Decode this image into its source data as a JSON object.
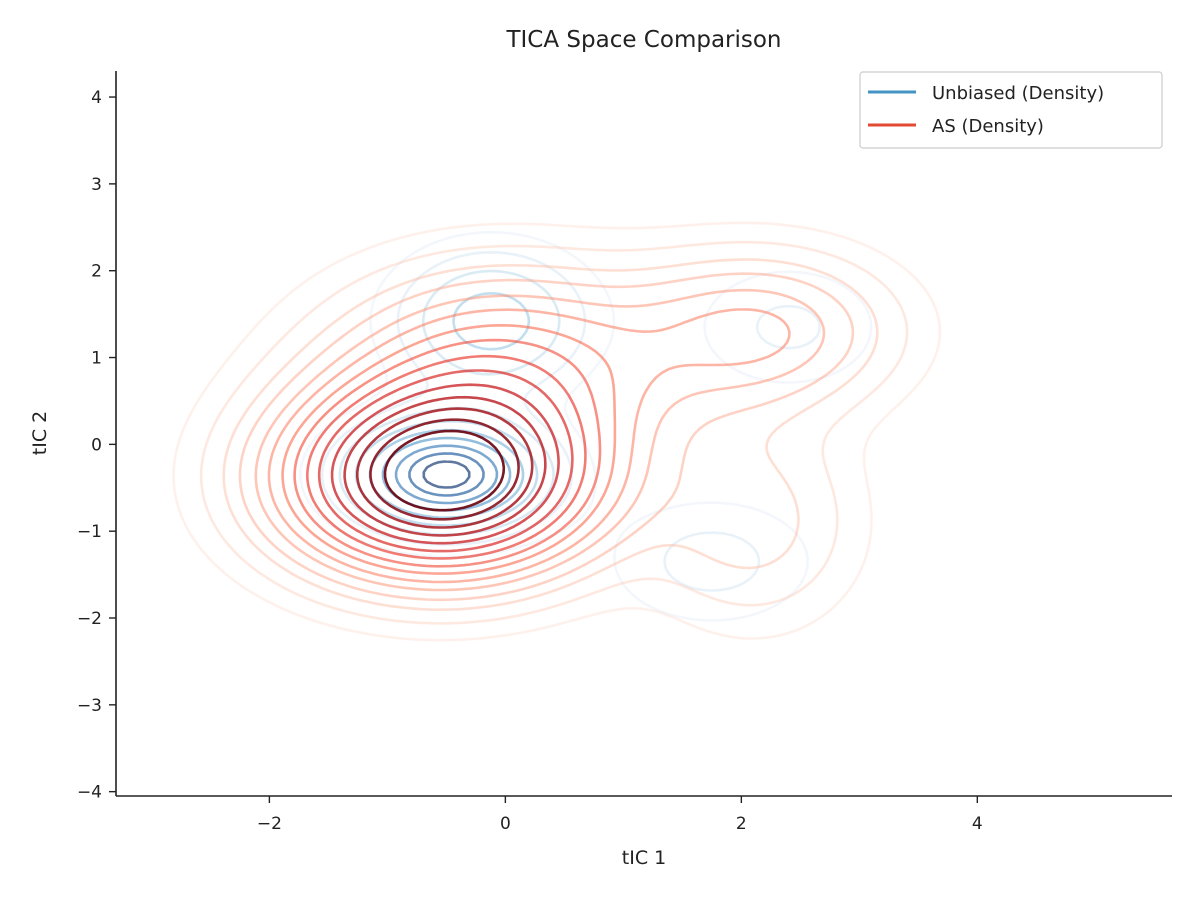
{
  "chart_data": {
    "type": "contour",
    "title": "TICA Space Comparison",
    "xlabel": "tIC 1",
    "ylabel": "tIC 2",
    "xlim": [
      -3.3,
      5.65
    ],
    "ylim": [
      -4.05,
      4.3
    ],
    "xticks": [
      -2,
      0,
      2,
      4
    ],
    "yticks": [
      -4,
      -3,
      -2,
      -1,
      0,
      1,
      2,
      3,
      4
    ],
    "xtick_labels": [
      "−2",
      "0",
      "2",
      "4"
    ],
    "ytick_labels": [
      "−4",
      "−3",
      "−2",
      "−1",
      "0",
      "1",
      "2",
      "3",
      "4"
    ],
    "grid": false,
    "legend_position": "top-right",
    "series": [
      {
        "name": "Unbiased (Density)",
        "color": "#4393c3",
        "colormap": "Blues",
        "components": [
          {
            "cx": -0.5,
            "cy": -0.35,
            "sx": 0.55,
            "sy": 0.42,
            "w": 1.0
          },
          {
            "cx": -0.12,
            "cy": 1.42,
            "sx": 0.55,
            "sy": 0.55,
            "w": 0.45
          },
          {
            "cx": 2.4,
            "cy": 1.35,
            "sx": 0.55,
            "sy": 0.5,
            "w": 0.18
          },
          {
            "cx": 1.75,
            "cy": -1.35,
            "sx": 0.6,
            "sy": 0.5,
            "w": 0.2
          }
        ],
        "levels": [
          0.08,
          0.16,
          0.26,
          0.38,
          0.5,
          0.62,
          0.74,
          0.85,
          0.94
        ]
      },
      {
        "name": "AS (Density)",
        "color": "#e34a33",
        "colormap": "Reds",
        "components": [
          {
            "cx": -0.55,
            "cy": -0.4,
            "sx": 0.85,
            "sy": 0.7,
            "w": 1.0
          },
          {
            "cx": 0.0,
            "cy": 0.9,
            "sx": 0.95,
            "sy": 0.75,
            "w": 0.32
          },
          {
            "cx": 2.15,
            "cy": 1.3,
            "sx": 0.75,
            "sy": 0.6,
            "w": 0.24
          },
          {
            "cx": 2.1,
            "cy": -0.9,
            "sx": 0.6,
            "sy": 0.8,
            "w": 0.12
          }
        ],
        "levels": [
          0.03,
          0.06,
          0.1,
          0.14,
          0.19,
          0.24,
          0.3,
          0.36,
          0.43,
          0.5,
          0.58,
          0.66,
          0.74,
          0.82,
          0.9
        ]
      }
    ]
  }
}
